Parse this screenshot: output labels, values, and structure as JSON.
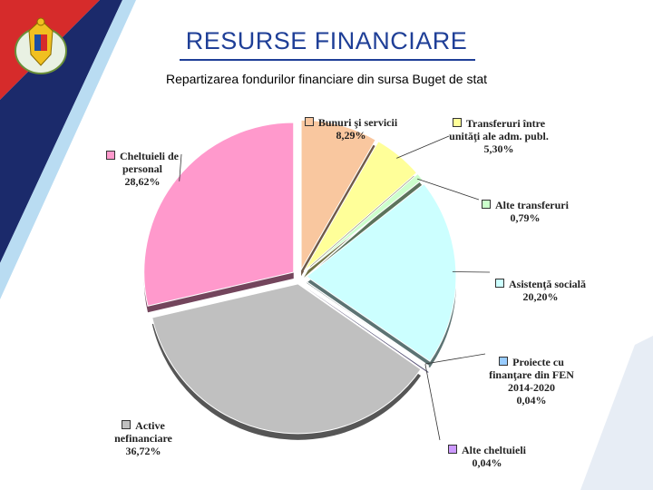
{
  "header": {
    "title": "RESURSE FINANCIARE",
    "subtitle": "Repartizarea fondurilor financiare din sursa Buget de stat"
  },
  "logo": {
    "icon": "coat-of-arms-icon"
  },
  "colors": {
    "title": "#1f3f97",
    "deco_red": "#d62b2b",
    "deco_navy": "#1b2a6b",
    "deco_light": "#b9dcf2"
  },
  "chart_data": {
    "type": "pie",
    "title": "",
    "slices": [
      {
        "name": "Bunuri şi servicii",
        "value": 8.29,
        "label": "8,29%",
        "color": "#f9c79f"
      },
      {
        "name": "Transferuri între unităţi ale adm. publ.",
        "value": 5.3,
        "label": "5,30%",
        "color": "#ffff99"
      },
      {
        "name": "Alte transferuri",
        "value": 0.79,
        "label": "0,79%",
        "color": "#ccffcc"
      },
      {
        "name": "Asistenţă socială",
        "value": 20.2,
        "label": "20,20%",
        "color": "#ccffff"
      },
      {
        "name": "Proiecte cu finanţare din FEN 2014-2020",
        "value": 0.04,
        "label": "0,04%",
        "color": "#99ccff"
      },
      {
        "name": "Alte cheltuieli",
        "value": 0.04,
        "label": "0,04%",
        "color": "#cc99ff"
      },
      {
        "name": "Active nefinanciare",
        "value": 36.72,
        "label": "36,72%",
        "color": "#c0c0c0"
      },
      {
        "name": "Cheltuieli de personal",
        "value": 28.62,
        "label": "28,62%",
        "color": "#ff99cc"
      }
    ],
    "legend": "labels-around-pie"
  }
}
